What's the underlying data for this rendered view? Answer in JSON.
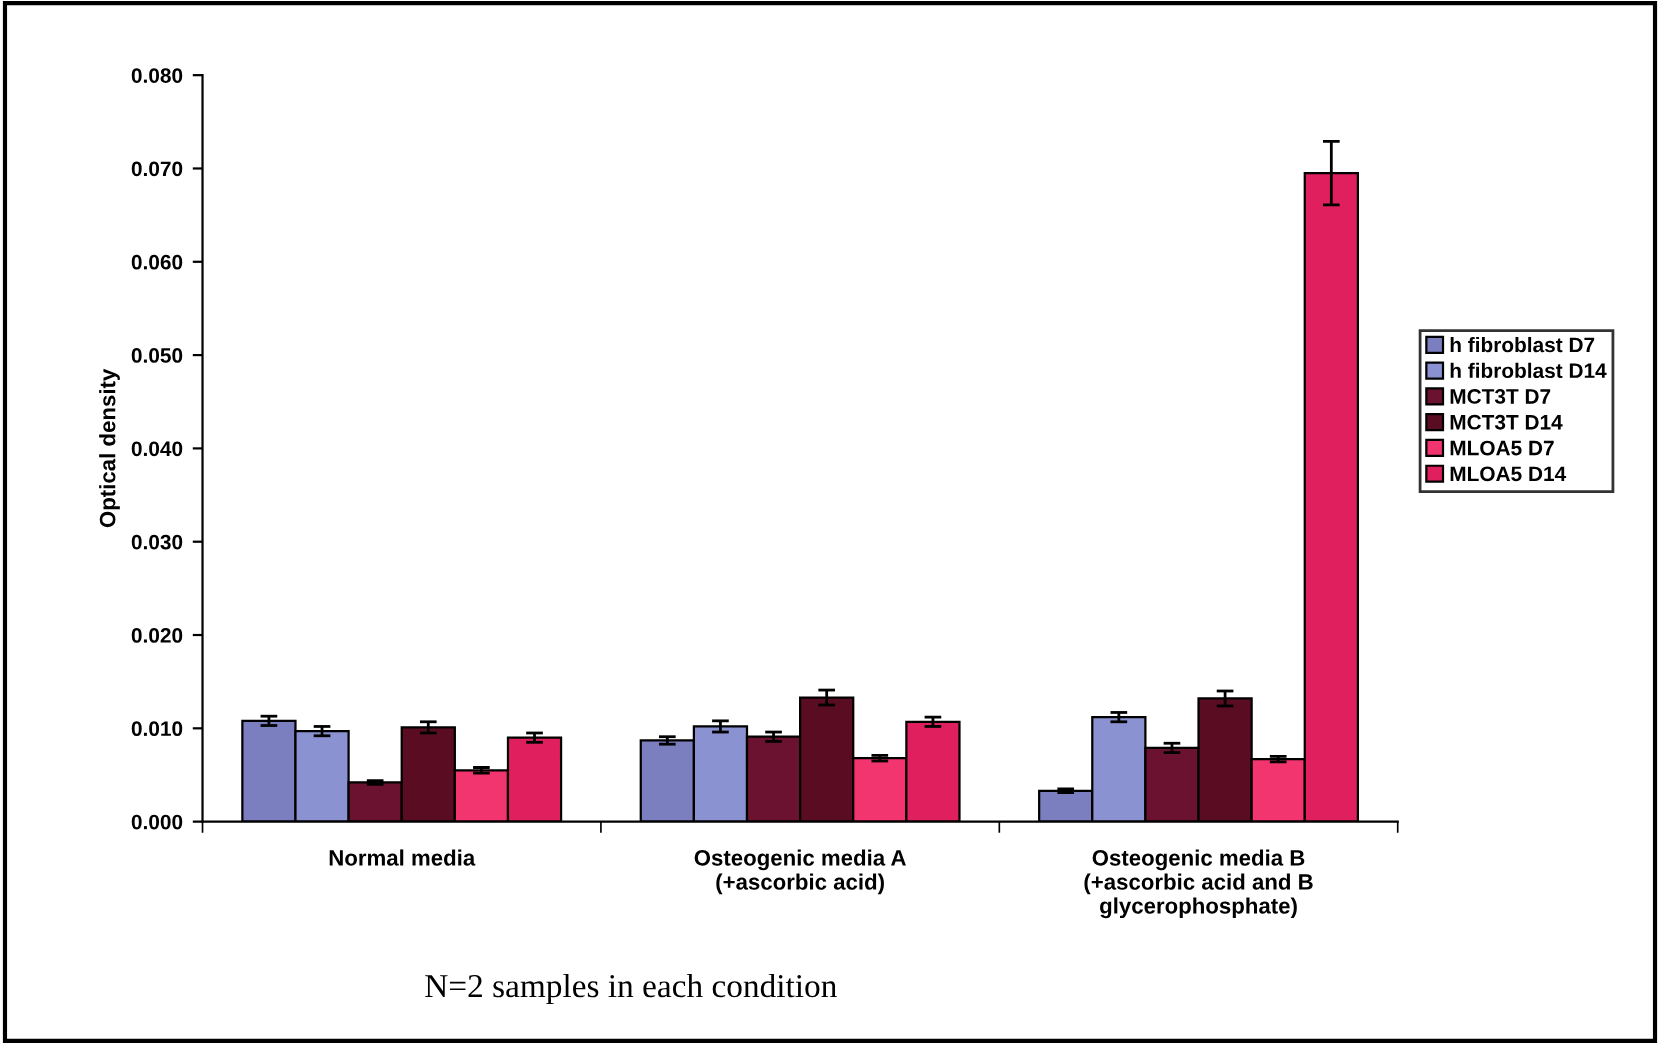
{
  "chart_data": {
    "type": "bar",
    "ylabel": "Optical density",
    "categories": [
      "Normal media",
      "Osteogenic media A\n(+ascorbic acid)",
      "Osteogenic media B\n(+ascorbic acid and B\nglycerophosphate)"
    ],
    "series": [
      {
        "name": "h fibroblast D7",
        "color": "#7b7fbf",
        "values": [
          0.0108,
          0.0087,
          0.0033
        ],
        "errors": [
          0.0005,
          0.0004,
          0.0002
        ]
      },
      {
        "name": "h fibroblast D14",
        "color": "#8a92d2",
        "values": [
          0.0097,
          0.0102,
          0.0112
        ],
        "errors": [
          0.0005,
          0.0006,
          0.0005
        ]
      },
      {
        "name": "MCT3T D7",
        "color": "#6b1230",
        "values": [
          0.0042,
          0.0091,
          0.0079
        ],
        "errors": [
          0.0002,
          0.0005,
          0.0005
        ]
      },
      {
        "name": "MCT3T D14",
        "color": "#5a0d22",
        "values": [
          0.0101,
          0.0133,
          0.0132
        ],
        "errors": [
          0.0006,
          0.0008,
          0.0008
        ]
      },
      {
        "name": "MLOA5 D7",
        "color": "#f2356e",
        "values": [
          0.0055,
          0.0068,
          0.0067
        ],
        "errors": [
          0.0003,
          0.0003,
          0.0003
        ]
      },
      {
        "name": "MLOA5 D14",
        "color": "#e0205e",
        "values": [
          0.009,
          0.0107,
          0.0695
        ],
        "errors": [
          0.0005,
          0.0005,
          0.0034
        ]
      }
    ],
    "ylim": [
      0,
      0.08
    ],
    "yticks": [
      {
        "value": 0,
        "label": "0.000"
      },
      {
        "value": 0.01,
        "label": "0.010"
      },
      {
        "value": 0.02,
        "label": "0.020"
      },
      {
        "value": 0.03,
        "label": "0.030"
      },
      {
        "value": 0.04,
        "label": "0.040"
      },
      {
        "value": 0.05,
        "label": "0.050"
      },
      {
        "value": 0.06,
        "label": "0.060"
      },
      {
        "value": 0.07,
        "label": "0.070"
      },
      {
        "value": 0.08,
        "label": "0.080"
      }
    ],
    "legend": "right",
    "grid": false,
    "annotations": [
      "N=2 samples in each condition"
    ]
  }
}
